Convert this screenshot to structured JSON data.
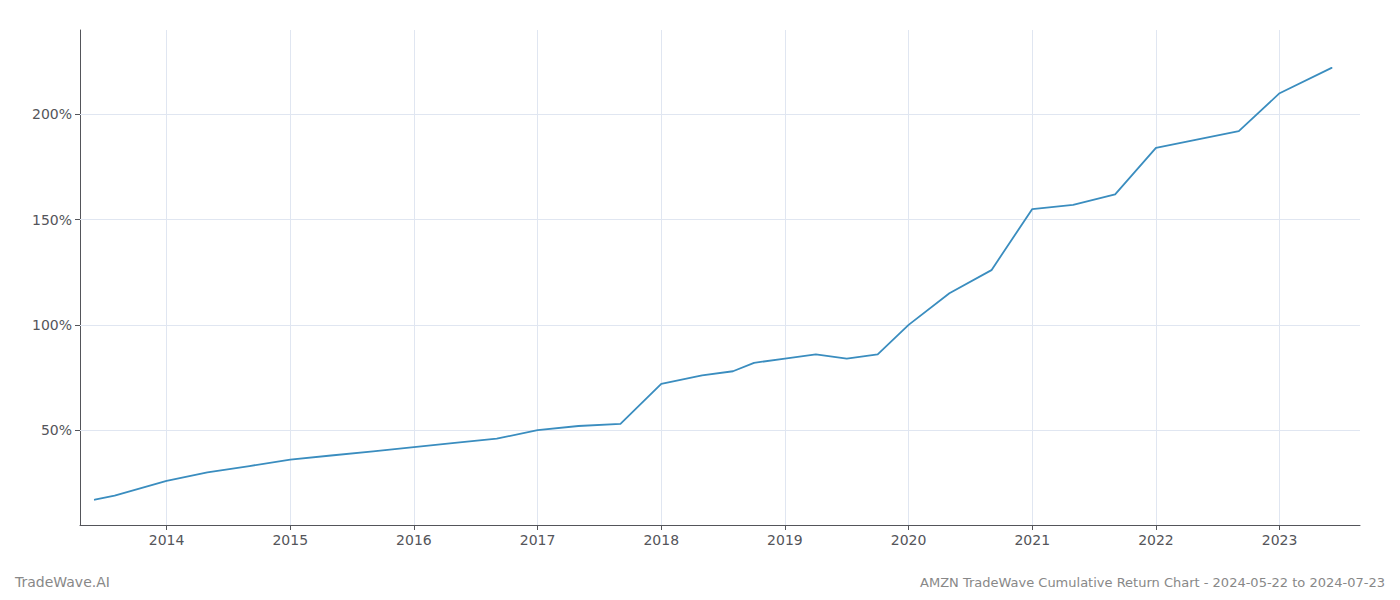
{
  "chart_data": {
    "type": "line",
    "title": "AMZN TradeWave Cumulative Return Chart - 2024-05-22 to 2024-07-23",
    "annotations": [
      "TradeWave.AI"
    ],
    "x": [
      2013.42,
      2013.58,
      2014.0,
      2014.33,
      2014.67,
      2015.0,
      2015.33,
      2015.67,
      2016.0,
      2016.33,
      2016.67,
      2017.0,
      2017.33,
      2017.67,
      2018.0,
      2018.33,
      2018.58,
      2018.75,
      2019.0,
      2019.25,
      2019.5,
      2019.75,
      2020.0,
      2020.33,
      2020.67,
      2021.0,
      2021.33,
      2021.67,
      2022.0,
      2022.33,
      2022.67,
      2023.0,
      2023.42
    ],
    "values": [
      17,
      19,
      26,
      30,
      33,
      36,
      38,
      40,
      42,
      44,
      46,
      50,
      52,
      53,
      72,
      76,
      78,
      82,
      84,
      86,
      84,
      86,
      100,
      115,
      126,
      155,
      157,
      162,
      184,
      188,
      192,
      210,
      222
    ],
    "color": "#3a8dbf",
    "xlim": [
      2013.3,
      2023.65
    ],
    "xticks": [
      2014,
      2015,
      2016,
      2017,
      2018,
      2019,
      2020,
      2021,
      2022,
      2023
    ],
    "ylim": [
      5,
      240
    ],
    "yticks": [
      {
        "value": 50,
        "label": "50%"
      },
      {
        "value": 100,
        "label": "100%"
      },
      {
        "value": 150,
        "label": "150%"
      },
      {
        "value": 200,
        "label": "200%"
      }
    ],
    "grid": true
  }
}
